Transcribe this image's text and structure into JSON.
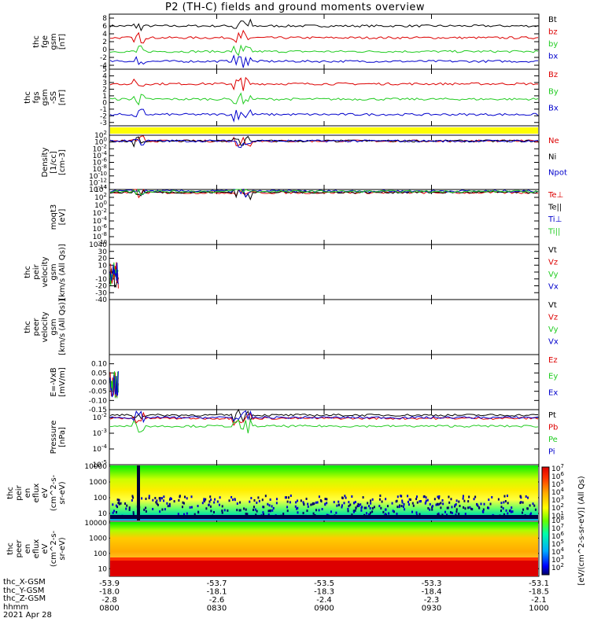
{
  "title": "P2 (TH-C) fields and ground moments overview",
  "date_label": "2021 Apr 28",
  "colors": {
    "black": "#000000",
    "red": "#dd0000",
    "green": "#22cc22",
    "blue": "#0000cc",
    "yellow": "#ffff00"
  },
  "chart_data": [
    {
      "type": "line",
      "ylabel": [
        "thc",
        "fge",
        "gsm",
        "[nT]"
      ],
      "ylim": [
        -5,
        9
      ],
      "yticks": [
        "8",
        "6",
        "4",
        "2",
        "0",
        "-2",
        "-4"
      ],
      "ytick_values": [
        8,
        6,
        4,
        2,
        0,
        -2,
        -4
      ],
      "series": [
        {
          "name": "Bt",
          "color": "#000000",
          "level": 6.0
        },
        {
          "name": "bz",
          "color": "#dd0000",
          "level": 3.0
        },
        {
          "name": "by",
          "color": "#22cc22",
          "level": -0.5
        },
        {
          "name": "bx",
          "color": "#0000cc",
          "level": -3.0
        }
      ]
    },
    {
      "type": "line",
      "ylabel": [
        "thc",
        "fgs",
        "gsm",
        "-SS",
        "[nT]"
      ],
      "ylim": [
        -3.5,
        5
      ],
      "yticks": [
        "5",
        "4",
        "3",
        "2",
        "1",
        "0",
        "-1",
        "-2",
        "-3"
      ],
      "ytick_values": [
        5,
        4,
        3,
        2,
        1,
        0,
        -1,
        -2,
        -3
      ],
      "series": [
        {
          "name": "Bz",
          "color": "#dd0000",
          "level": 2.8
        },
        {
          "name": "By",
          "color": "#22cc22",
          "level": 0.5
        },
        {
          "name": "Bx",
          "color": "#0000cc",
          "level": -1.8
        }
      ]
    },
    {
      "type": "flag_bar",
      "color": "#ffff00"
    },
    {
      "type": "line",
      "scale": "log",
      "ylabel": [
        "Density",
        "[1/cc]",
        "[cm-3]"
      ],
      "ylim": [
        -14,
        2
      ],
      "yticks": [
        "10^2",
        "10^0",
        "10^-2",
        "10^-4",
        "10^-6",
        "10^-8",
        "10^-10",
        "10^-12",
        "10^-14"
      ],
      "ytick_values": [
        2,
        0,
        -2,
        -4,
        -6,
        -8,
        -10,
        -12,
        -14
      ],
      "series": [
        {
          "name": "Ne",
          "color": "#dd0000",
          "level": 0.3
        },
        {
          "name": "Ni",
          "color": "#000000",
          "level": 0.3
        },
        {
          "name": "Npot",
          "color": "#0000cc",
          "level": 0.3
        }
      ]
    },
    {
      "type": "line",
      "scale": "log",
      "ylabel": [
        "moqt3",
        "[eV]"
      ],
      "ylim": [
        -10,
        4
      ],
      "yticks": [
        "10^4",
        "10^2",
        "10^0",
        "10^-2",
        "10^-4",
        "10^-6",
        "10^-8",
        "10^-10"
      ],
      "ytick_values": [
        4,
        2,
        0,
        -2,
        -4,
        -6,
        -8,
        -10
      ],
      "series": [
        {
          "name": "Te⊥",
          "color": "#dd0000",
          "level": 3.2
        },
        {
          "name": "Te||",
          "color": "#000000",
          "level": 3.3
        },
        {
          "name": "Ti⊥",
          "color": "#0000cc",
          "level": 3.6
        },
        {
          "name": "Ti||",
          "color": "#22cc22",
          "level": 3.5
        }
      ]
    },
    {
      "type": "line",
      "ylabel": [
        "thc",
        "peir",
        "velocity",
        "gsm",
        "[km/s (All Qs)]"
      ],
      "ylim": [
        -40,
        40
      ],
      "yticks": [
        "40",
        "30",
        "20",
        "10",
        "0",
        "-10",
        "-20",
        "-30",
        "-40"
      ],
      "ytick_values": [
        40,
        30,
        20,
        10,
        0,
        -10,
        -20,
        -30,
        -40
      ],
      "series": [
        {
          "name": "Vt",
          "color": "#000000"
        },
        {
          "name": "Vz",
          "color": "#dd0000"
        },
        {
          "name": "Vy",
          "color": "#22cc22"
        },
        {
          "name": "Vx",
          "color": "#0000cc"
        }
      ]
    },
    {
      "type": "line",
      "ylabel": [
        "thc",
        "peer",
        "velocity",
        "gsm",
        "[km/s (All Qs)]"
      ],
      "ylim": [
        0,
        1
      ],
      "yticks": [],
      "ytick_values": [],
      "series": [
        {
          "name": "Vt",
          "color": "#000000"
        },
        {
          "name": "Vz",
          "color": "#dd0000"
        },
        {
          "name": "Vy",
          "color": "#22cc22"
        },
        {
          "name": "Vx",
          "color": "#0000cc"
        }
      ]
    },
    {
      "type": "line",
      "ylabel": [
        "E=-VxB",
        "[mV/m]"
      ],
      "ylim": [
        -0.15,
        0.15
      ],
      "yticks": [
        "0.10",
        "0.05",
        "0.00",
        "-0.05",
        "-0.10",
        "-0.15"
      ],
      "ytick_values": [
        0.1,
        0.05,
        0.0,
        -0.05,
        -0.1,
        -0.15
      ],
      "series": [
        {
          "name": "Ez",
          "color": "#dd0000"
        },
        {
          "name": "Ey",
          "color": "#22cc22"
        },
        {
          "name": "Ex",
          "color": "#0000cc"
        }
      ]
    },
    {
      "type": "line",
      "scale": "log",
      "ylabel": [
        "Pressure",
        "[nPa]"
      ],
      "ylim": [
        -5,
        -1.5
      ],
      "yticks": [
        "10^-2",
        "10^-3",
        "10^-4",
        "10^-5"
      ],
      "ytick_values": [
        -2,
        -3,
        -4,
        -5
      ],
      "series": [
        {
          "name": "Pt",
          "color": "#000000",
          "level": -1.85
        },
        {
          "name": "Pb",
          "color": "#dd0000",
          "level": -2.05
        },
        {
          "name": "Pe",
          "color": "#22cc22",
          "level": -2.55
        },
        {
          "name": "Pi",
          "color": "#0000cc",
          "level": -2.0
        }
      ]
    },
    {
      "type": "heatmap",
      "ylabel": [
        "thc",
        "peir",
        "en",
        "eflux",
        "eV",
        "(cm^2-s-",
        "sr-eV)"
      ],
      "yticks": [
        "10000",
        "1000",
        "100",
        "10"
      ],
      "ytick_values": [
        4,
        3,
        2,
        1
      ],
      "ylim": [
        0.5,
        4.1
      ]
    },
    {
      "type": "heatmap",
      "ylabel": [
        "thc",
        "peer",
        "en",
        "eflux",
        "eV",
        "(cm^2-s-",
        "sr-eV)"
      ],
      "yticks": [
        "10000",
        "1000",
        "100",
        "10"
      ],
      "ytick_values": [
        4,
        3,
        2,
        1
      ],
      "ylim": [
        0.5,
        4.1
      ]
    }
  ],
  "colorbar": {
    "ticks": [
      "10^7",
      "10^6",
      "10^5",
      "10^4",
      "10^3",
      "10^2",
      "10^1"
    ],
    "lower_ticks": [
      "10^8",
      "10^7",
      "10^6",
      "10^5",
      "10^4",
      "10^3",
      "10^2"
    ],
    "label": "[eV/(cm^2-s-sr-eV)] (All Qs)"
  },
  "x_axis": {
    "tick_label_rows": [
      [
        "-53.9",
        "-53.7",
        "-53.5",
        "-53.3",
        "-53.1"
      ],
      [
        "-18.0",
        "-18.1",
        "-18.3",
        "-18.4",
        "-18.5"
      ],
      [
        "-2.8",
        "-2.6",
        "-2.4",
        "-2.3",
        "-2.1"
      ],
      [
        "0800",
        "0830",
        "0900",
        "0930",
        "1000"
      ]
    ],
    "row_labels": [
      "thc_X-GSM",
      "thc_Y-GSM",
      "thc_Z-GSM",
      "hhmm"
    ]
  }
}
